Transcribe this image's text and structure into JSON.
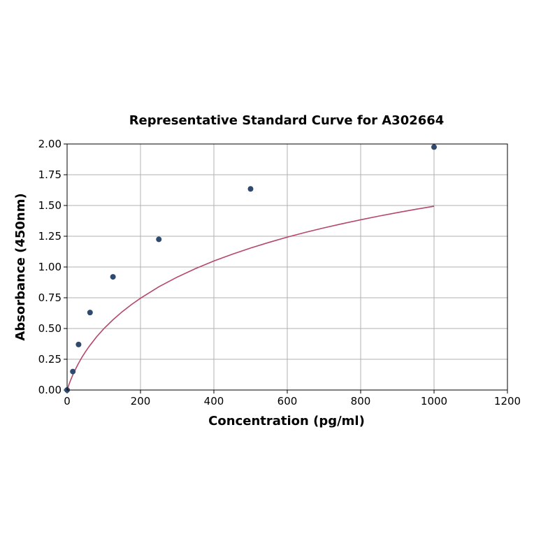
{
  "chart_data": {
    "type": "scatter",
    "title": "Representative Standard Curve for A302664",
    "xlabel": "Concentration (pg/ml)",
    "ylabel": "Absorbance (450nm)",
    "xlim": [
      0,
      1200
    ],
    "ylim": [
      0,
      2.0
    ],
    "x_ticks": [
      "0",
      "200",
      "400",
      "600",
      "800",
      "1000",
      "1200"
    ],
    "y_ticks": [
      "0.00",
      "0.25",
      "0.50",
      "0.75",
      "1.00",
      "1.25",
      "1.50",
      "1.75",
      "2.00"
    ],
    "x_tick_values": [
      0,
      200,
      400,
      600,
      800,
      1000,
      1200
    ],
    "y_tick_values": [
      0,
      0.25,
      0.5,
      0.75,
      1.0,
      1.25,
      1.5,
      1.75,
      2.0
    ],
    "grid": true,
    "series": [
      {
        "type": "scatter",
        "color": "#2e4a6e",
        "x": [
          0,
          15.6,
          31.25,
          62.5,
          125,
          250,
          500,
          1000
        ],
        "y": [
          0.0,
          0.15,
          0.37,
          0.63,
          0.92,
          1.225,
          1.635,
          1.975
        ]
      },
      {
        "type": "line",
        "color": "#b5476b",
        "x": [
          0,
          5,
          10,
          15,
          20,
          30,
          40,
          50,
          60,
          80,
          100,
          125,
          150,
          175,
          200,
          250,
          300,
          350,
          400,
          450,
          500,
          550,
          600,
          650,
          700,
          750,
          800,
          850,
          900,
          950,
          1000
        ],
        "y": [
          0.0,
          0.044,
          0.083,
          0.119,
          0.152,
          0.211,
          0.264,
          0.311,
          0.354,
          0.431,
          0.498,
          0.571,
          0.636,
          0.694,
          0.746,
          0.839,
          0.918,
          0.987,
          1.049,
          1.104,
          1.154,
          1.2,
          1.243,
          1.282,
          1.318,
          1.352,
          1.384,
          1.414,
          1.442,
          1.469,
          1.494
        ]
      }
    ]
  }
}
